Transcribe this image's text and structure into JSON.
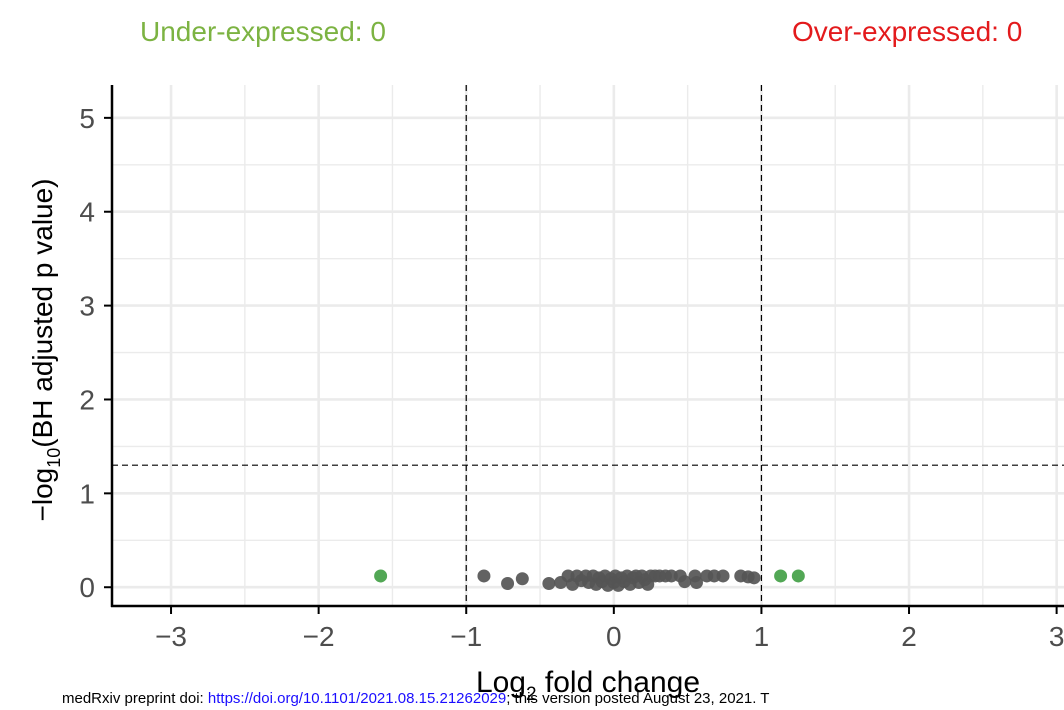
{
  "header": {
    "under_expressed_label": "Under-expressed: 0",
    "over_expressed_label": "Over-expressed: 0"
  },
  "footer": {
    "preprint_prefix": "medRxiv preprint doi: ",
    "doi_link": "https://doi.org/10.1101/2021.08.15.21262029",
    "preprint_suffix": "; this version posted August 23, 2021. T"
  },
  "colors": {
    "under_expressed": "#7cb342",
    "over_expressed": "#e31a1c",
    "point_not_significant": "#555555",
    "point_fold_change_only": "#43a047",
    "grid": "#ebebeb"
  },
  "chart_data": {
    "type": "scatter",
    "title": "",
    "xlabel": "Log2 fold change",
    "xlabel_main": "Log",
    "xlabel_subscript": "2",
    "xlabel_rest": " fold change",
    "ylabel": "-log10(BH adjusted p value)",
    "ylabel_main": "−log",
    "ylabel_subscript": "10",
    "ylabel_rest": "(BH adjusted p value)",
    "xlim": [
      -3.4,
      3.05
    ],
    "ylim": [
      -0.2,
      5.35
    ],
    "x_ticks": [
      -3,
      -2,
      -1,
      0,
      1,
      2,
      3
    ],
    "x_tick_labels": [
      "−3",
      "−2",
      "−1",
      "0",
      "1",
      "2",
      "3"
    ],
    "y_ticks": [
      0,
      1,
      2,
      3,
      4,
      5
    ],
    "y_tick_labels": [
      "0",
      "1",
      "2",
      "3",
      "4",
      "5"
    ],
    "grid": true,
    "thresholds": {
      "log2_fold_change": [
        -1,
        1
      ],
      "neg_log10_p": 1.3
    },
    "series": [
      {
        "name": "",
        "color": "#555555",
        "points": [
          {
            "x": -0.88,
            "y": 0.12
          },
          {
            "x": -0.72,
            "y": 0.04
          },
          {
            "x": -0.62,
            "y": 0.09
          },
          {
            "x": -0.44,
            "y": 0.04
          },
          {
            "x": -0.36,
            "y": 0.05
          },
          {
            "x": -0.31,
            "y": 0.12
          },
          {
            "x": -0.28,
            "y": 0.03
          },
          {
            "x": -0.25,
            "y": 0.12
          },
          {
            "x": -0.22,
            "y": 0.07
          },
          {
            "x": -0.19,
            "y": 0.12
          },
          {
            "x": -0.17,
            "y": 0.05
          },
          {
            "x": -0.14,
            "y": 0.12
          },
          {
            "x": -0.12,
            "y": 0.03
          },
          {
            "x": -0.1,
            "y": 0.1
          },
          {
            "x": -0.08,
            "y": 0.06
          },
          {
            "x": -0.06,
            "y": 0.12
          },
          {
            "x": -0.04,
            "y": 0.02
          },
          {
            "x": -0.02,
            "y": 0.09
          },
          {
            "x": 0.0,
            "y": 0.05
          },
          {
            "x": 0.01,
            "y": 0.12
          },
          {
            "x": 0.03,
            "y": 0.02
          },
          {
            "x": 0.05,
            "y": 0.1
          },
          {
            "x": 0.07,
            "y": 0.06
          },
          {
            "x": 0.09,
            "y": 0.12
          },
          {
            "x": 0.11,
            "y": 0.03
          },
          {
            "x": 0.13,
            "y": 0.1
          },
          {
            "x": 0.15,
            "y": 0.12
          },
          {
            "x": 0.17,
            "y": 0.05
          },
          {
            "x": 0.19,
            "y": 0.12
          },
          {
            "x": 0.21,
            "y": 0.08
          },
          {
            "x": 0.23,
            "y": 0.03
          },
          {
            "x": 0.25,
            "y": 0.12
          },
          {
            "x": 0.28,
            "y": 0.12
          },
          {
            "x": 0.31,
            "y": 0.12
          },
          {
            "x": 0.35,
            "y": 0.12
          },
          {
            "x": 0.39,
            "y": 0.12
          },
          {
            "x": 0.45,
            "y": 0.12
          },
          {
            "x": 0.48,
            "y": 0.06
          },
          {
            "x": 0.55,
            "y": 0.12
          },
          {
            "x": 0.56,
            "y": 0.05
          },
          {
            "x": 0.63,
            "y": 0.12
          },
          {
            "x": 0.68,
            "y": 0.12
          },
          {
            "x": 0.74,
            "y": 0.12
          },
          {
            "x": 0.86,
            "y": 0.12
          },
          {
            "x": 0.91,
            "y": 0.11
          },
          {
            "x": 0.95,
            "y": 0.1
          }
        ]
      },
      {
        "name": "",
        "color": "#43a047",
        "points": [
          {
            "x": -1.58,
            "y": 0.12
          },
          {
            "x": 1.13,
            "y": 0.12
          },
          {
            "x": 1.25,
            "y": 0.12
          }
        ]
      }
    ]
  }
}
